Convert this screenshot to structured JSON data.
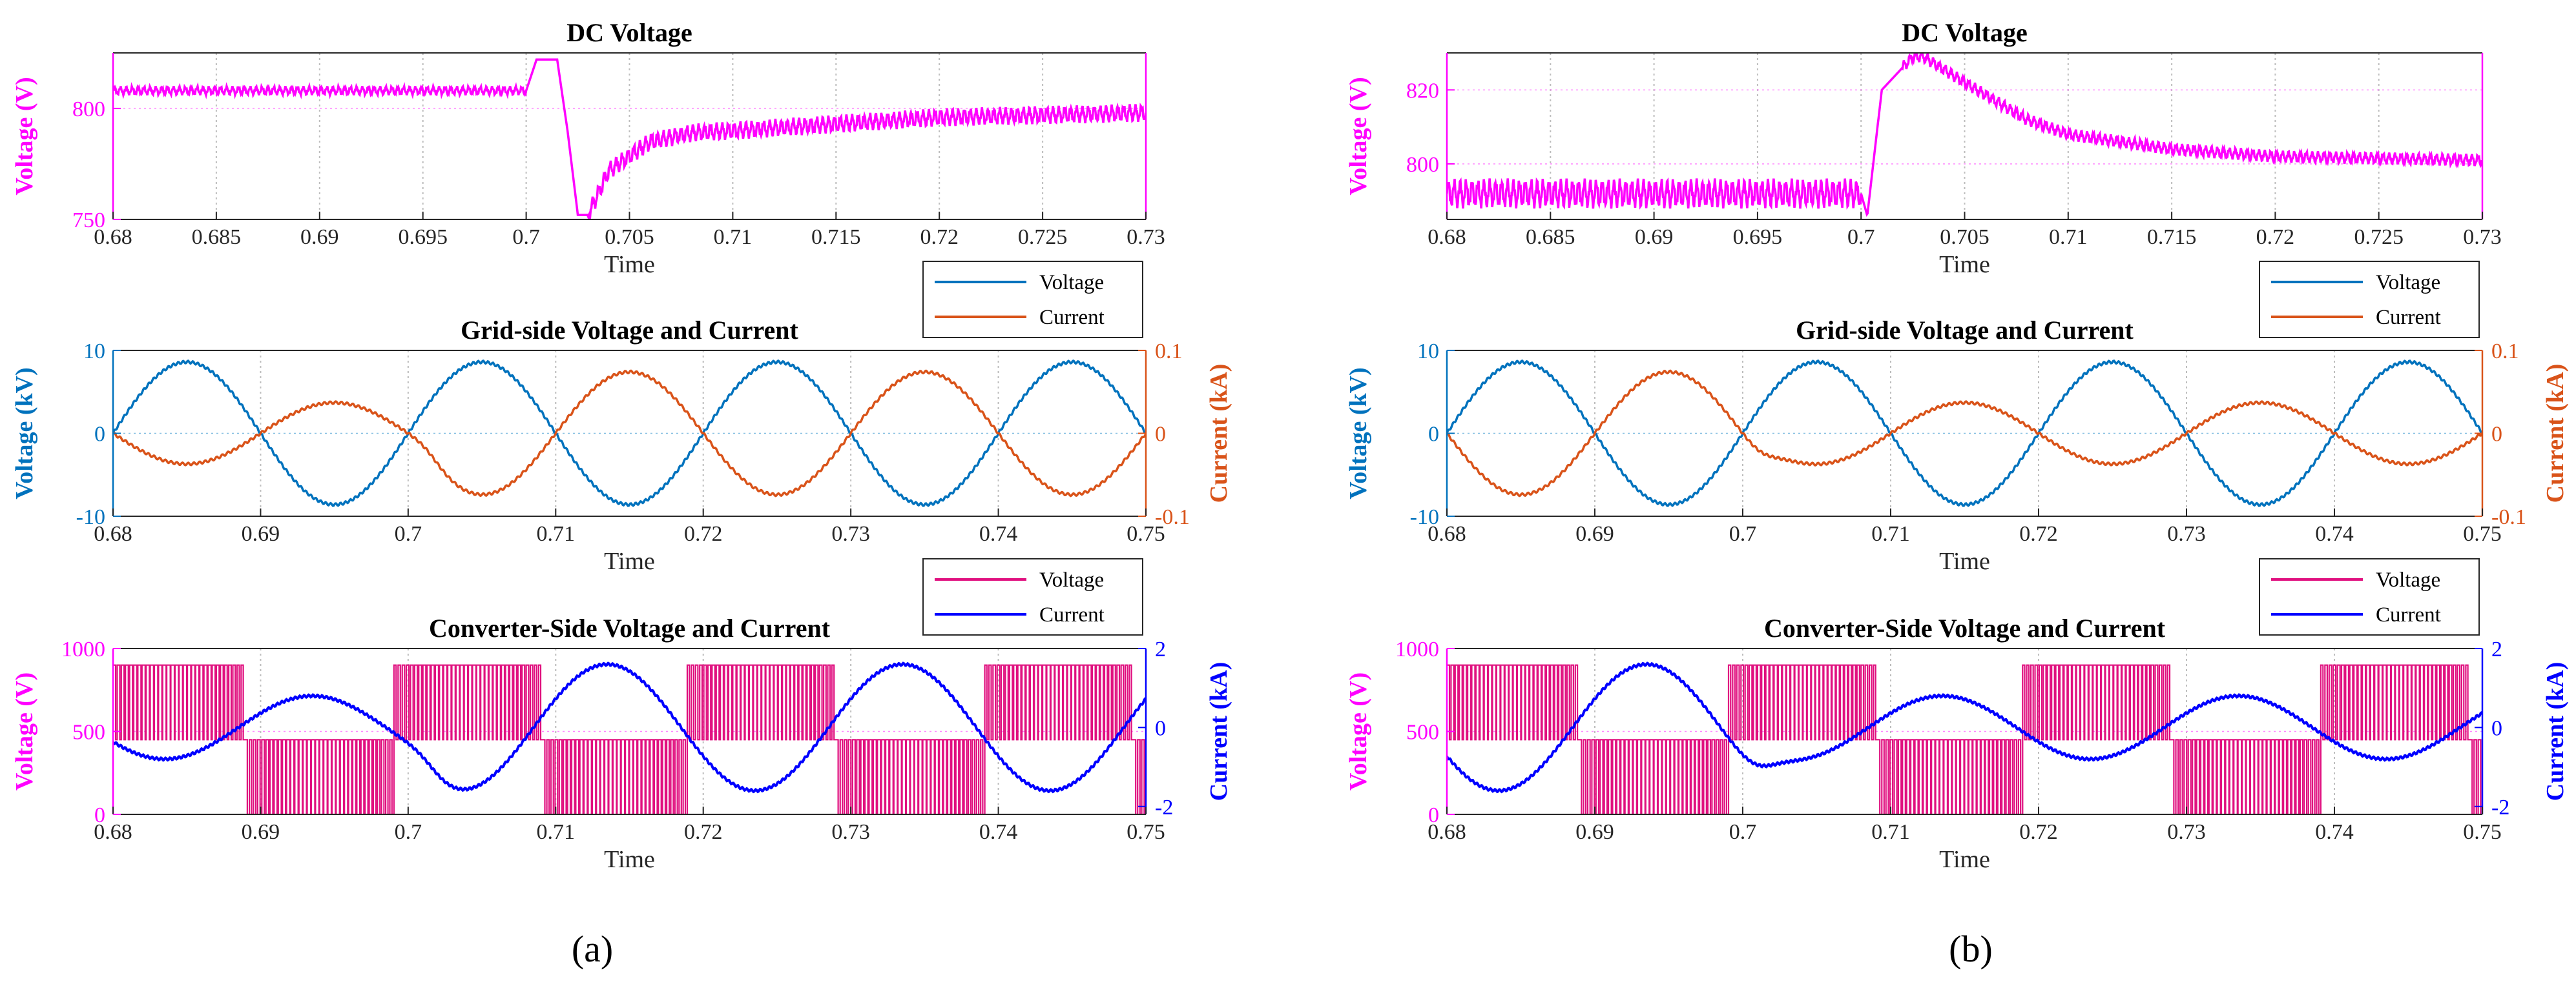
{
  "colors": {
    "magenta": "#FF00FF",
    "blue_matlab": "#0072BD",
    "orange_matlab": "#D95319",
    "conv_voltage": "#E0107F",
    "conv_current": "#0000FF",
    "grid": "#BDBDBD",
    "axis": "#262626"
  },
  "captions": [
    "(a)",
    "(b)"
  ],
  "chart_data": [
    {
      "id": "a-dc",
      "type": "line",
      "title": "DC Voltage",
      "xlabel": "Time",
      "ylabel": "Voltage (V)",
      "xlim": [
        0.68,
        0.73
      ],
      "ylim": [
        750,
        825
      ],
      "xticks": [
        0.68,
        0.685,
        0.69,
        0.695,
        0.7,
        0.705,
        0.71,
        0.715,
        0.72,
        0.725,
        0.73
      ],
      "xtick_labels": [
        "0.68",
        "0.685",
        "0.69",
        "0.695",
        "0.7",
        "0.705",
        "0.71",
        "0.715",
        "0.72",
        "0.725",
        "0.73"
      ],
      "yticks": [
        750,
        800
      ],
      "ytick_labels": [
        "750",
        "800"
      ],
      "series": [
        {
          "name": "DC Voltage",
          "color": "magenta",
          "x": [
            0.68,
            0.7,
            0.7005,
            0.7015,
            0.702,
            0.7025,
            0.703,
            0.704,
            0.706,
            0.708,
            0.71,
            0.715,
            0.72,
            0.725,
            0.73
          ],
          "y": [
            808,
            808,
            822,
            822,
            790,
            752,
            752,
            772,
            785,
            789,
            790,
            793,
            796,
            797,
            798
          ],
          "ripple": [
            0.68,
            0.7,
            1.5
          ],
          "ripple2": [
            0.703,
            0.73,
            3
          ],
          "freq": 3500
        }
      ]
    },
    {
      "id": "a-grid",
      "type": "line",
      "title": "Grid-side Voltage and Current",
      "xlabel": "Time",
      "ylabel": "Voltage (kV)",
      "ylabel_right": "Current (kA)",
      "xlim": [
        0.68,
        0.75
      ],
      "ylim": [
        -10,
        10
      ],
      "ylim_right": [
        -0.1,
        0.1
      ],
      "xticks": [
        0.68,
        0.69,
        0.7,
        0.71,
        0.72,
        0.73,
        0.74,
        0.75
      ],
      "xtick_labels": [
        "0.68",
        "0.69",
        "0.7",
        "0.71",
        "0.72",
        "0.73",
        "0.74",
        "0.75"
      ],
      "yticks": [
        -10,
        0,
        10
      ],
      "ytick_labels": [
        "-10",
        "0",
        "10"
      ],
      "yticks_right": [
        -0.1,
        0,
        0.1
      ],
      "ytick_labels_right": [
        "-0.1",
        "0",
        "0.1"
      ],
      "legend": [
        "Voltage",
        "Current"
      ],
      "series": [
        {
          "name": "Voltage",
          "color": "blue_matlab",
          "amplitude_kV": 8.6,
          "freq_hz": 50
        },
        {
          "name": "Current",
          "color": "orange_matlab",
          "amplitude_kA_before_0.7": 0.037,
          "amplitude_kA_after_0.7": 0.074,
          "freq_hz": 50,
          "phase": "opposite"
        }
      ]
    },
    {
      "id": "a-conv",
      "type": "line",
      "title": "Converter-Side Voltage and Current",
      "xlabel": "Time",
      "ylabel": "Voltage (V)",
      "ylabel_right": "Current (kA)",
      "xlim": [
        0.68,
        0.75
      ],
      "ylim": [
        0,
        1000
      ],
      "ylim_right": [
        -2.2,
        2
      ],
      "xticks": [
        0.68,
        0.69,
        0.7,
        0.71,
        0.72,
        0.73,
        0.74,
        0.75
      ],
      "xtick_labels": [
        "0.68",
        "0.69",
        "0.7",
        "0.71",
        "0.72",
        "0.73",
        "0.74",
        "0.75"
      ],
      "yticks": [
        0,
        500,
        1000
      ],
      "ytick_labels": [
        "0",
        "500",
        "1000"
      ],
      "yticks_right": [
        -2,
        0,
        2
      ],
      "ytick_labels_right": [
        "-2",
        "0",
        "2"
      ],
      "legend": [
        "Voltage",
        "Current"
      ],
      "series": [
        {
          "name": "Voltage",
          "color": "conv_voltage",
          "levels_V": [
            0,
            450,
            900
          ],
          "switching": "PWM"
        },
        {
          "name": "Current",
          "color": "conv_current",
          "amplitude_kA_before_0.7": 0.8,
          "amplitude_kA_after_0.7": 1.6,
          "freq_hz": 50
        }
      ]
    },
    {
      "id": "b-dc",
      "type": "line",
      "title": "DC Voltage",
      "xlabel": "Time",
      "ylabel": "Voltage (V)",
      "xlim": [
        0.68,
        0.73
      ],
      "ylim": [
        785,
        830
      ],
      "xticks": [
        0.68,
        0.685,
        0.69,
        0.695,
        0.7,
        0.705,
        0.71,
        0.715,
        0.72,
        0.725,
        0.73
      ],
      "xtick_labels": [
        "0.68",
        "0.685",
        "0.69",
        "0.695",
        "0.7",
        "0.705",
        "0.71",
        "0.715",
        "0.72",
        "0.725",
        "0.73"
      ],
      "yticks": [
        800,
        820
      ],
      "ytick_labels": [
        "800",
        "820"
      ],
      "series": [
        {
          "name": "DC Voltage",
          "color": "magenta",
          "x": [
            0.68,
            0.7,
            0.7003,
            0.701,
            0.7025,
            0.703,
            0.705,
            0.708,
            0.71,
            0.715,
            0.72,
            0.725,
            0.73
          ],
          "y": [
            792,
            792,
            786,
            820,
            829,
            829,
            822,
            812,
            808,
            804,
            802,
            801.5,
            801
          ],
          "ripple": [
            0.68,
            0.7,
            3
          ],
          "ripple2": [
            0.702,
            0.73,
            1.2
          ],
          "freq": 3500
        }
      ]
    },
    {
      "id": "b-grid",
      "type": "line",
      "title": "Grid-side Voltage and Current",
      "xlabel": "Time",
      "ylabel": "Voltage (kV)",
      "ylabel_right": "Current (kA)",
      "xlim": [
        0.68,
        0.75
      ],
      "ylim": [
        -10,
        10
      ],
      "ylim_right": [
        -0.1,
        0.1
      ],
      "xticks": [
        0.68,
        0.69,
        0.7,
        0.71,
        0.72,
        0.73,
        0.74,
        0.75
      ],
      "xtick_labels": [
        "0.68",
        "0.69",
        "0.7",
        "0.71",
        "0.72",
        "0.73",
        "0.74",
        "0.75"
      ],
      "yticks": [
        -10,
        0,
        10
      ],
      "ytick_labels": [
        "-10",
        "0",
        "10"
      ],
      "yticks_right": [
        -0.1,
        0,
        0.1
      ],
      "ytick_labels_right": [
        "-0.1",
        "0",
        "0.1"
      ],
      "legend": [
        "Voltage",
        "Current"
      ],
      "series": [
        {
          "name": "Voltage",
          "color": "blue_matlab",
          "amplitude_kV": 8.6,
          "freq_hz": 50
        },
        {
          "name": "Current",
          "color": "orange_matlab",
          "amplitude_kA_before_0.7": 0.074,
          "amplitude_kA_after_0.7": 0.037,
          "freq_hz": 50,
          "phase": "opposite"
        }
      ]
    },
    {
      "id": "b-conv",
      "type": "line",
      "title": "Converter-Side Voltage and Current",
      "xlabel": "Time",
      "ylabel": "Voltage (V)",
      "ylabel_right": "Current (kA)",
      "xlim": [
        0.68,
        0.75
      ],
      "ylim": [
        0,
        1000
      ],
      "ylim_right": [
        -2.2,
        2
      ],
      "xticks": [
        0.68,
        0.69,
        0.7,
        0.71,
        0.72,
        0.73,
        0.74,
        0.75
      ],
      "xtick_labels": [
        "0.68",
        "0.69",
        "0.7",
        "0.71",
        "0.72",
        "0.73",
        "0.74",
        "0.75"
      ],
      "yticks": [
        0,
        500,
        1000
      ],
      "ytick_labels": [
        "0",
        "500",
        "1000"
      ],
      "yticks_right": [
        -2,
        0,
        2
      ],
      "ytick_labels_right": [
        "-2",
        "0",
        "2"
      ],
      "legend": [
        "Voltage",
        "Current"
      ],
      "series": [
        {
          "name": "Voltage",
          "color": "conv_voltage",
          "levels_V": [
            0,
            450,
            900
          ],
          "switching": "PWM"
        },
        {
          "name": "Current",
          "color": "conv_current",
          "amplitude_kA_before_0.7": 1.6,
          "amplitude_kA_after_0.7": 0.8,
          "freq_hz": 50
        }
      ]
    }
  ]
}
